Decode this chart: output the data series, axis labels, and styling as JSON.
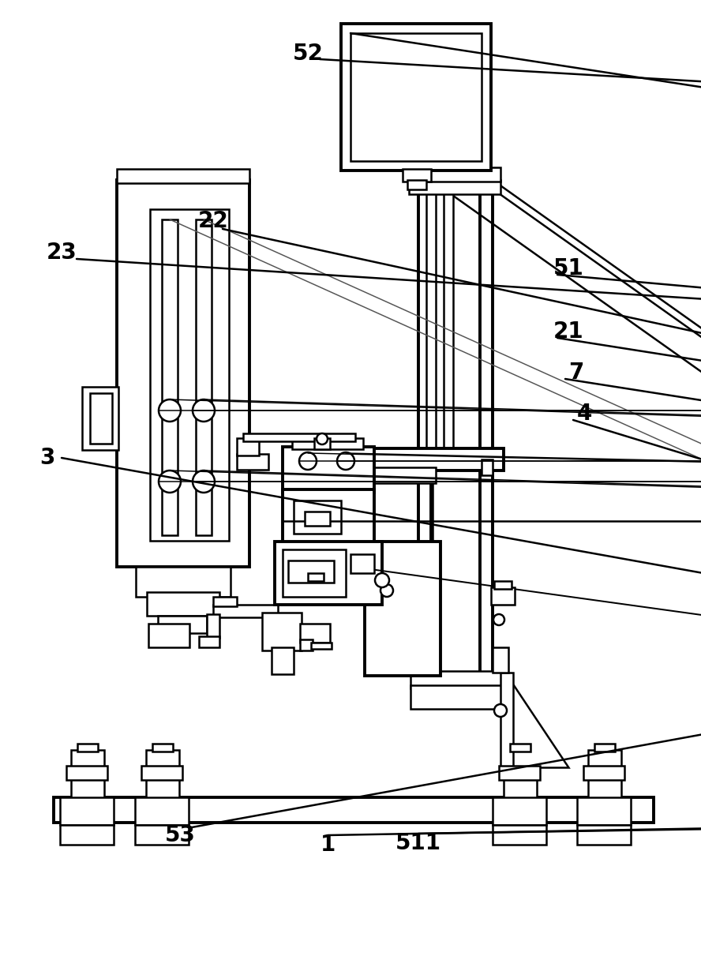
{
  "bg": "#ffffff",
  "lc": "#000000",
  "lw": 1.8,
  "tlw": 2.8,
  "fig_w": 8.88,
  "fig_h": 12.3,
  "dpi": 100
}
